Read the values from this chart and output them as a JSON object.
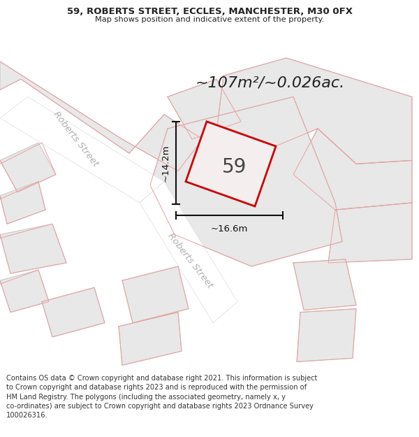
{
  "title_line1": "59, ROBERTS STREET, ECCLES, MANCHESTER, M30 0FX",
  "title_line2": "Map shows position and indicative extent of the property.",
  "area_text": "~107m²/~0.026ac.",
  "number_label": "59",
  "dim_width_label": "~16.6m",
  "dim_height_label": "~14.2m",
  "footer_text": "Contains OS data © Crown copyright and database right 2021. This information is subject to Crown copyright and database rights 2023 and is reproduced with the permission of HM Land Registry. The polygons (including the associated geometry, namely x, y co-ordinates) are subject to Crown copyright and database rights 2023 Ordnance Survey 100026316.",
  "bg_color": "#ffffff",
  "map_bg_color": "#ffffff",
  "building_fill": "#e8e8e8",
  "building_edge": "#c8c8c8",
  "parcel_edge": "#e8a0a0",
  "highlight_fill": "#f5eeee",
  "highlight_edge": "#cc0000",
  "dim_line_color": "#111111",
  "street_label_color": "#b0b0b0",
  "title_color": "#222222",
  "footer_color": "#333333"
}
